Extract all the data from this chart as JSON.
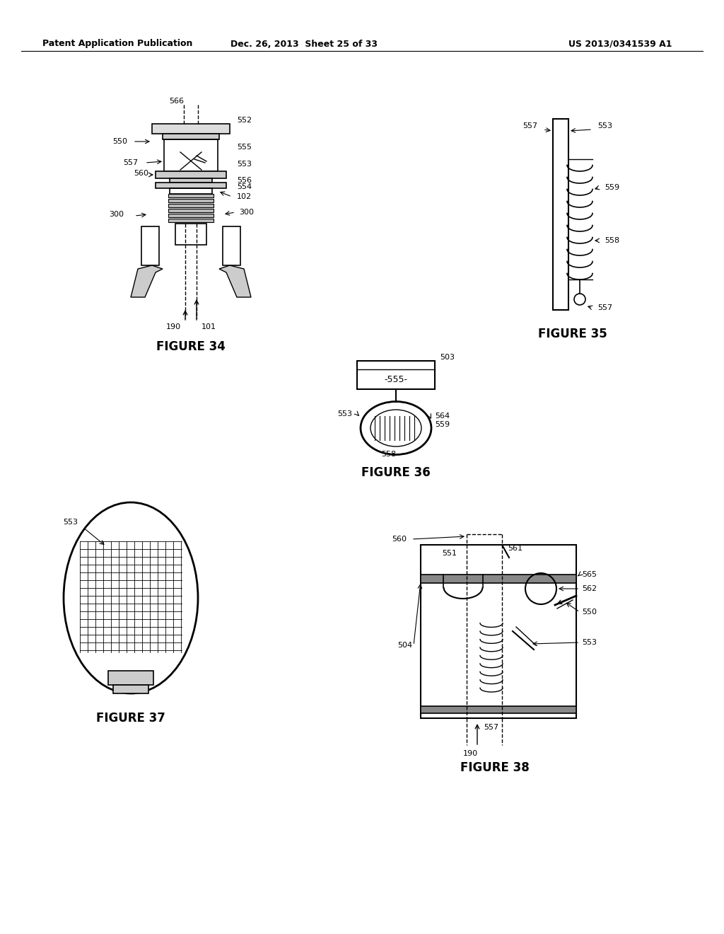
{
  "bg_color": "#ffffff",
  "text_color": "#000000",
  "header_left": "Patent Application Publication",
  "header_mid": "Dec. 26, 2013  Sheet 25 of 33",
  "header_right": "US 2013/0341539 A1",
  "figure_labels": {
    "fig34": "FIGURE 34",
    "fig35": "FIGURE 35",
    "fig36": "FIGURE 36",
    "fig37": "FIGURE 37",
    "fig38": "FIGURE 38"
  },
  "label_fontsize": 11,
  "header_fontsize": 9,
  "figure_title_fontsize": 12
}
